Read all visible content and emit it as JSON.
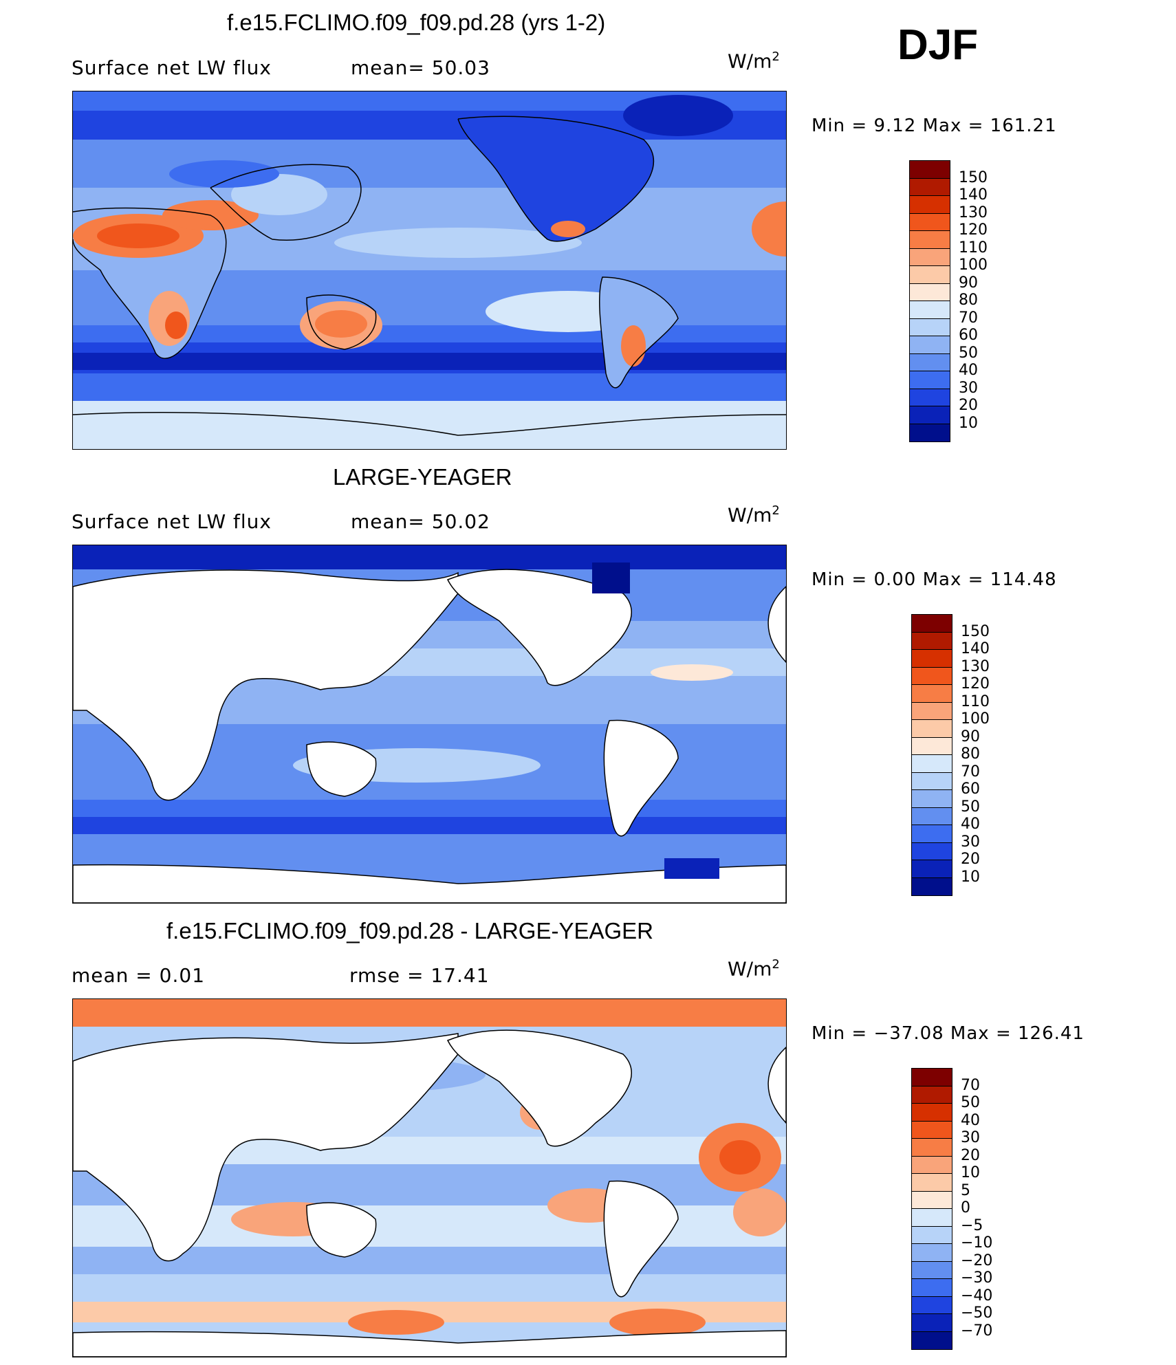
{
  "season": "DJF",
  "units_base": "W/m",
  "units_exp": "2",
  "panels": [
    {
      "title": "f.e15.FCLIMO.f09_f09.pd.28 (yrs 1-2)",
      "left_text": "Surface net LW flux",
      "stat_text": "mean=  50.03",
      "minmax": "Min =    9.12 Max = 161.21"
    },
    {
      "title": "LARGE-YEAGER",
      "left_text": "Surface net LW flux",
      "stat_text": "mean=  50.02",
      "minmax": "Min =    0.00 Max = 114.48"
    },
    {
      "title": "f.e15.FCLIMO.f09_f09.pd.28 - LARGE-YEAGER",
      "left_text": "mean =    0.01",
      "stat_text": "rmse =   17.41",
      "minmax": "Min = −37.08 Max = 126.41"
    }
  ],
  "colorbar_abs": {
    "labels": [
      "150",
      "140",
      "130",
      "120",
      "110",
      "100",
      "90",
      "80",
      "70",
      "60",
      "50",
      "40",
      "30",
      "20",
      "10"
    ],
    "colors": [
      "#7d0000",
      "#b01a00",
      "#d63000",
      "#f0561c",
      "#f77d45",
      "#f9a47a",
      "#fccaa8",
      "#fde8d8",
      "#d6e8fa",
      "#b7d3f8",
      "#8fb3f3",
      "#628ff0",
      "#3d6df0",
      "#1f44e0",
      "#0a22b8",
      "#000f8c"
    ]
  },
  "colorbar_diff": {
    "labels": [
      "70",
      "50",
      "40",
      "30",
      "20",
      "10",
      "5",
      "0",
      "−5",
      "−10",
      "−20",
      "−30",
      "−40",
      "−50",
      "−70"
    ],
    "colors": [
      "#7d0000",
      "#b01a00",
      "#d63000",
      "#f0561c",
      "#f77d45",
      "#f9a47a",
      "#fccaa8",
      "#fde8d8",
      "#d6e8fa",
      "#b7d3f8",
      "#8fb3f3",
      "#628ff0",
      "#3d6df0",
      "#1f44e0",
      "#0a22b8",
      "#000f8c"
    ]
  }
}
